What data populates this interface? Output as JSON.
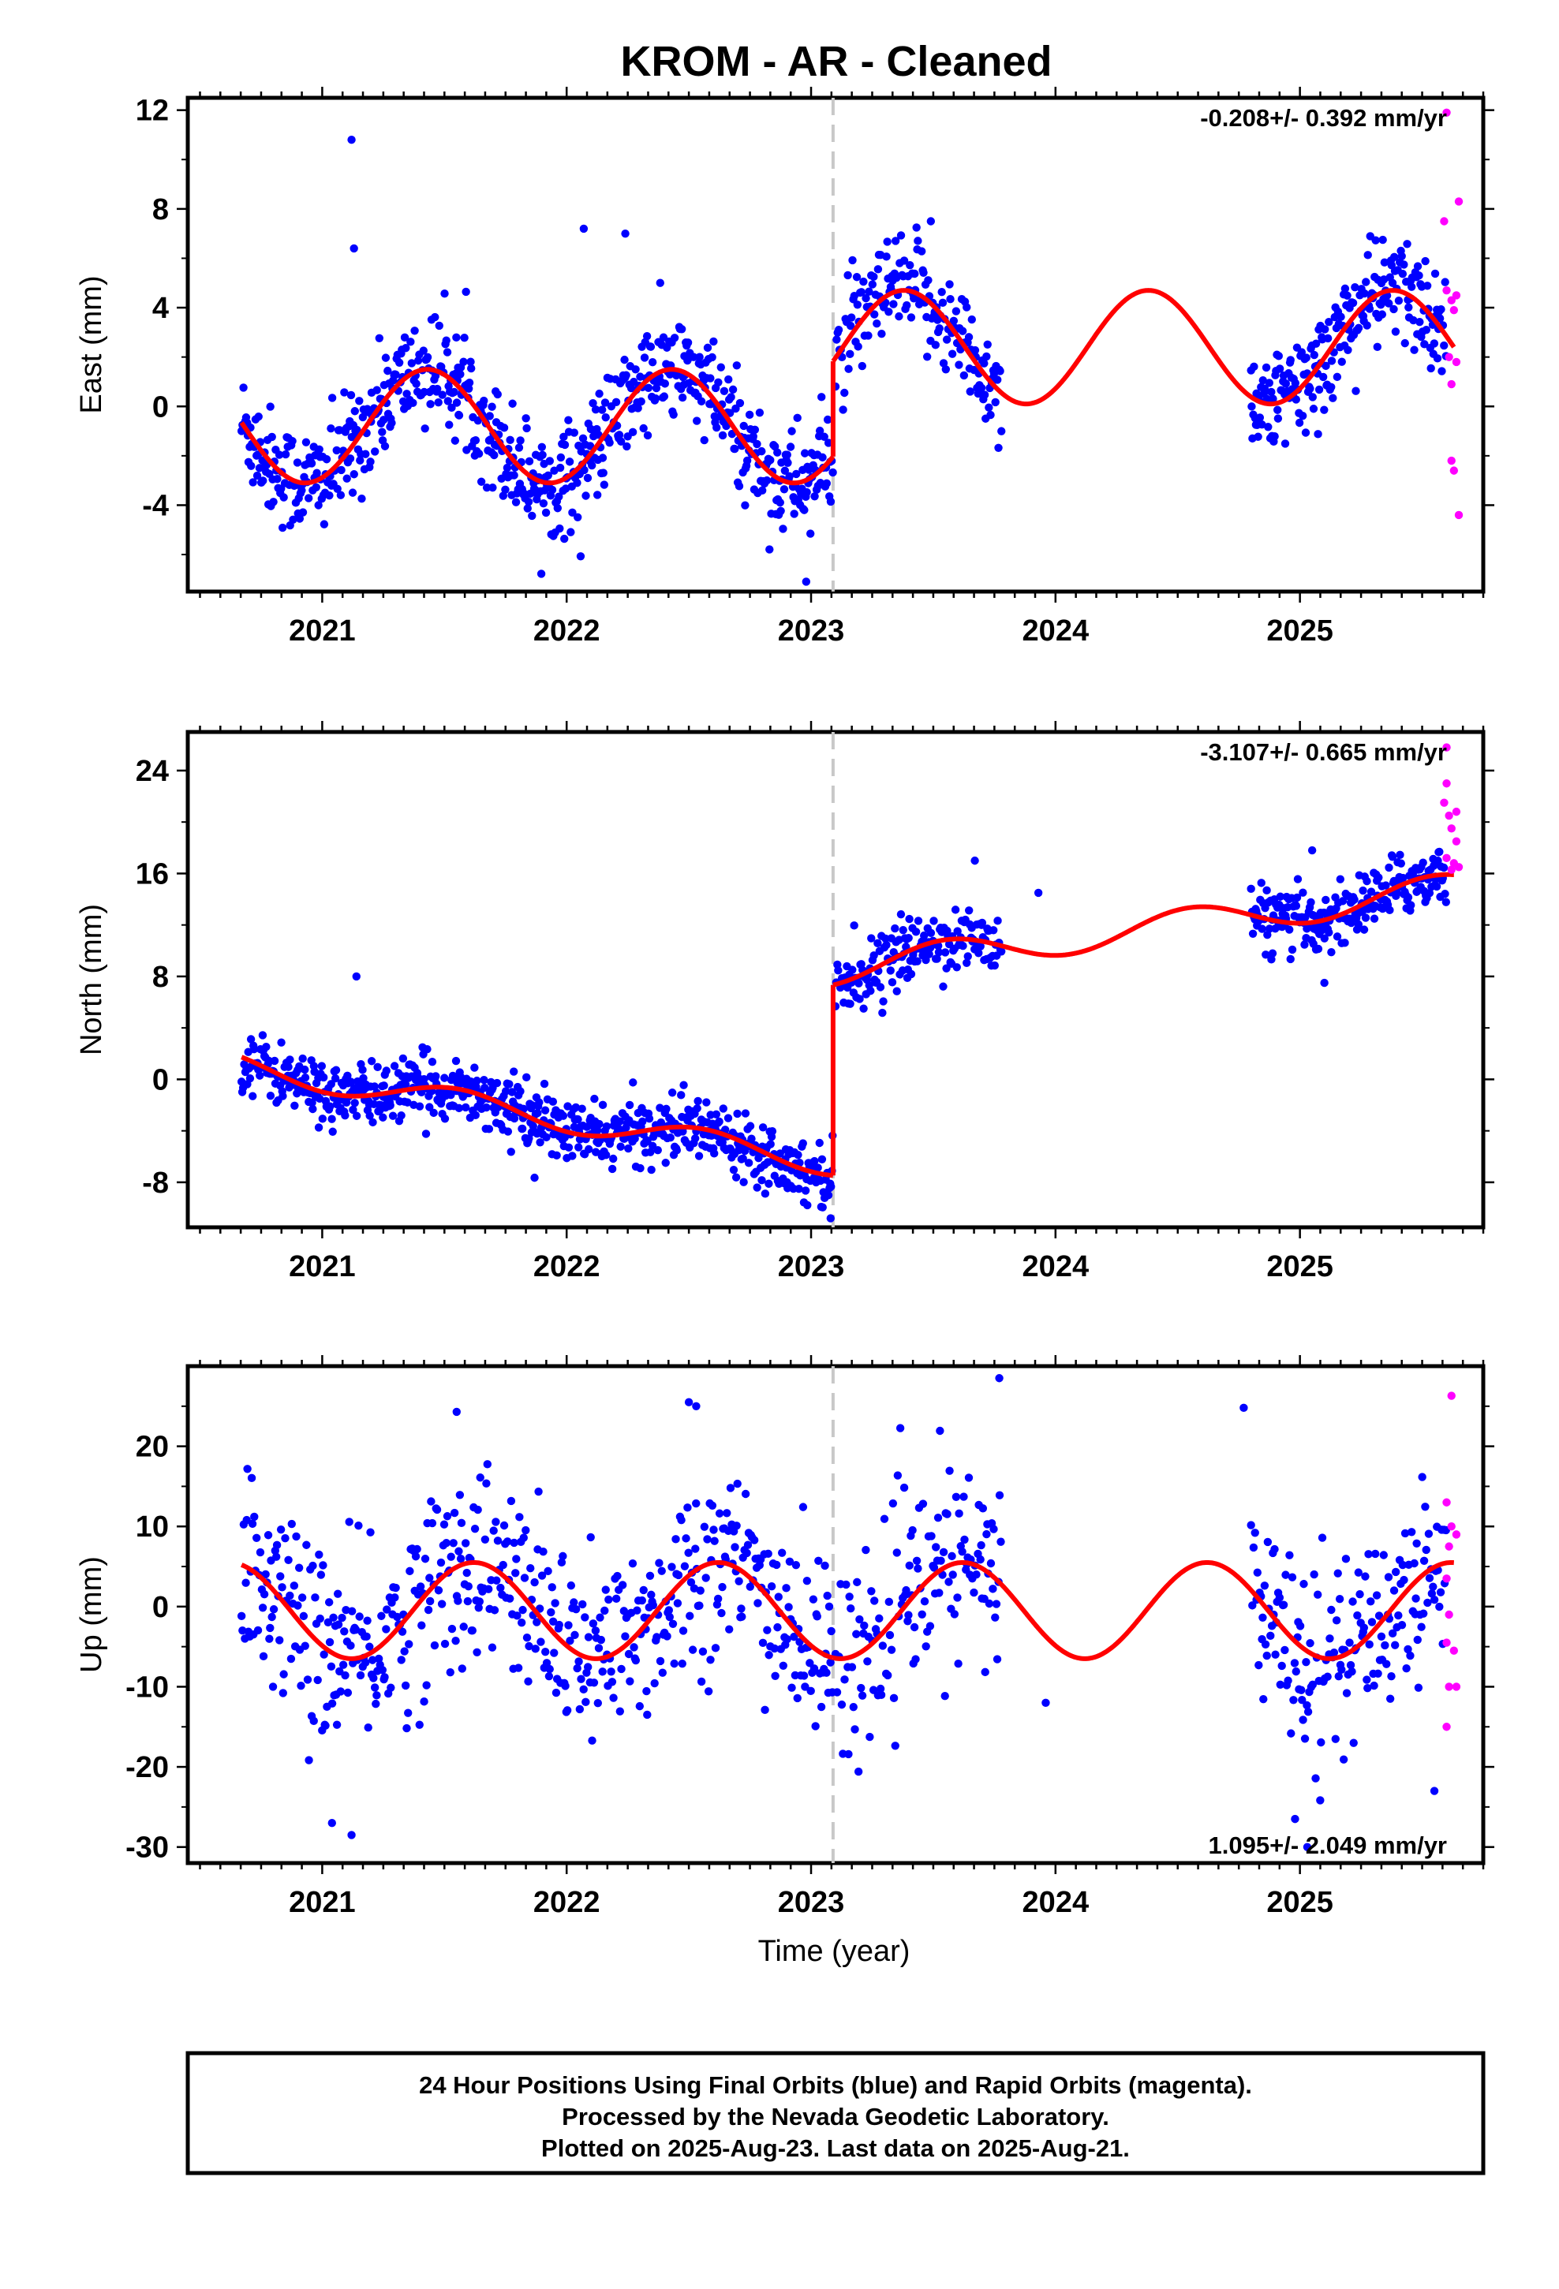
{
  "title": "KROM  - AR - Cleaned",
  "xlabel": "Time (year)",
  "footer": [
    "24 Hour Positions Using Final Orbits (blue) and Rapid Orbits (magenta).",
    "Processed by the Nevada Geodetic Laboratory.",
    "Plotted on 2025-Aug-23. Last data on 2025-Aug-21."
  ],
  "colors": {
    "final": "#0000ff",
    "rapid": "#ff00ff",
    "model": "#ff0000",
    "break": "#c8c8c8"
  },
  "chart_data": [
    {
      "type": "scatter",
      "ylabel": "East (mm)",
      "rate_text": "-0.208+/- 0.392 mm/yr",
      "xlim": [
        2020.45,
        2025.75
      ],
      "ylim": [
        -7.5,
        12.5
      ],
      "xticks": [
        2021,
        2022,
        2023,
        2024,
        2025
      ],
      "xtick_labels": [
        "2021",
        "2022",
        "2023",
        "2024",
        "2025"
      ],
      "yticks": [
        -4,
        0,
        4,
        8,
        12
      ],
      "ytick_labels": [
        "-4",
        "0",
        "4",
        "8",
        "12"
      ],
      "break_epoch": 2023.09,
      "model": {
        "segments": [
          {
            "x0": 2020.67,
            "x1": 2023.09,
            "offset": -0.8,
            "slope": 0.0,
            "amplitude": 2.3,
            "peak": 2021.43
          },
          {
            "x0": 2023.09,
            "x1": 2025.63,
            "offset": 2.4,
            "slope": 0.0,
            "amplitude": 2.3,
            "peak": 2023.38
          }
        ]
      },
      "final_segments": [
        {
          "x0": 2020.67,
          "x1": 2023.09,
          "spacing": 0.0035
        },
        {
          "x0": 2023.1,
          "x1": 2023.78,
          "spacing": 0.004
        },
        {
          "x0": 2024.8,
          "x1": 2025.6,
          "spacing": 0.0035
        }
      ],
      "final_scatter": 1.1,
      "final_points": [
        [
          2021.12,
          10.8
        ],
        [
          2021.13,
          6.4
        ],
        [
          2022.07,
          7.2
        ],
        [
          2022.24,
          7.0
        ],
        [
          2023.49,
          7.5
        ],
        [
          2022.98,
          -7.1
        ]
      ],
      "rapid_points": [
        [
          2025.6,
          11.9
        ],
        [
          2025.59,
          7.5
        ],
        [
          2025.65,
          8.3
        ],
        [
          2025.6,
          4.7
        ],
        [
          2025.62,
          4.3
        ],
        [
          2025.64,
          4.5
        ],
        [
          2025.63,
          3.9
        ],
        [
          2025.61,
          2.0
        ],
        [
          2025.64,
          1.8
        ],
        [
          2025.62,
          0.9
        ],
        [
          2025.62,
          -2.2
        ],
        [
          2025.63,
          -2.6
        ],
        [
          2025.65,
          -4.4
        ]
      ]
    },
    {
      "type": "scatter",
      "ylabel": "North (mm)",
      "rate_text": "-3.107+/- 0.665 mm/yr",
      "xlim": [
        2020.45,
        2025.75
      ],
      "ylim": [
        -11.5,
        27.0
      ],
      "xticks": [
        2021,
        2022,
        2023,
        2024,
        2025
      ],
      "xtick_labels": [
        "2021",
        "2022",
        "2023",
        "2024",
        "2025"
      ],
      "yticks": [
        -8,
        0,
        8,
        16,
        24
      ],
      "ytick_labels": [
        "-8",
        "0",
        "8",
        "16",
        "24"
      ],
      "break_epoch": 2023.09,
      "model": {
        "segments": [
          {
            "x0": 2020.67,
            "x1": 2023.09,
            "offset": 1.0,
            "slope": -3.1,
            "amplitude": 1.0,
            "peak": 2021.55
          },
          {
            "x0": 2023.09,
            "x1": 2025.63,
            "offset": 8.5,
            "slope": 2.5,
            "amplitude": 1.2,
            "peak": 2023.55
          }
        ]
      },
      "final_segments": [
        {
          "x0": 2020.67,
          "x1": 2023.09,
          "spacing": 0.0035
        },
        {
          "x0": 2023.1,
          "x1": 2023.78,
          "spacing": 0.004
        },
        {
          "x0": 2024.8,
          "x1": 2025.6,
          "spacing": 0.0035
        }
      ],
      "final_scatter": 1.2,
      "final_points": [
        [
          2021.14,
          8.0
        ],
        [
          2023.08,
          -10.8
        ],
        [
          2023.67,
          17.0
        ],
        [
          2023.93,
          14.5
        ],
        [
          2025.05,
          17.8
        ],
        [
          2025.1,
          7.5
        ]
      ],
      "rapid_points": [
        [
          2025.6,
          25.8
        ],
        [
          2025.6,
          23.0
        ],
        [
          2025.59,
          21.5
        ],
        [
          2025.61,
          20.5
        ],
        [
          2025.64,
          20.8
        ],
        [
          2025.62,
          19.5
        ],
        [
          2025.64,
          18.5
        ],
        [
          2025.6,
          17.2
        ],
        [
          2025.63,
          16.8
        ],
        [
          2025.62,
          16.3
        ],
        [
          2025.65,
          16.5
        ]
      ]
    },
    {
      "type": "scatter",
      "ylabel": "Up (mm)",
      "rate_text": "1.095+/- 2.049 mm/yr",
      "xlim": [
        2020.45,
        2025.75
      ],
      "ylim": [
        -32,
        30
      ],
      "xticks": [
        2021,
        2022,
        2023,
        2024,
        2025
      ],
      "xtick_labels": [
        "2021",
        "2022",
        "2023",
        "2024",
        "2025"
      ],
      "yticks": [
        -30,
        -20,
        -10,
        0,
        10,
        20
      ],
      "ytick_labels": [
        "-30",
        "-20",
        "-10",
        "0",
        "10",
        "20"
      ],
      "break_epoch": 2023.09,
      "model": {
        "segments": [
          {
            "x0": 2020.67,
            "x1": 2023.09,
            "offset": -0.5,
            "slope": 0.0,
            "amplitude": 6.0,
            "peak": 2021.62
          },
          {
            "x0": 2023.09,
            "x1": 2025.63,
            "offset": -0.5,
            "slope": 0.0,
            "amplitude": 6.0,
            "peak": 2023.62
          }
        ]
      },
      "final_segments": [
        {
          "x0": 2020.67,
          "x1": 2023.09,
          "spacing": 0.0045
        },
        {
          "x0": 2023.1,
          "x1": 2023.78,
          "spacing": 0.005
        },
        {
          "x0": 2024.8,
          "x1": 2025.6,
          "spacing": 0.0045
        }
      ],
      "final_scatter": 6.0,
      "final_points": [
        [
          2021.04,
          -27.0
        ],
        [
          2021.12,
          -28.5
        ],
        [
          2021.55,
          24.3
        ],
        [
          2022.5,
          25.5
        ],
        [
          2022.53,
          25.0
        ],
        [
          2023.77,
          28.5
        ],
        [
          2024.77,
          24.8
        ],
        [
          2024.98,
          -26.5
        ],
        [
          2025.03,
          -30.0
        ],
        [
          2025.55,
          -23.0
        ],
        [
          2023.96,
          -12.0
        ]
      ],
      "rapid_points": [
        [
          2025.62,
          26.3
        ],
        [
          2025.6,
          13.0
        ],
        [
          2025.62,
          10.0
        ],
        [
          2025.61,
          7.5
        ],
        [
          2025.6,
          3.5
        ],
        [
          2025.61,
          -1.0
        ],
        [
          2025.6,
          -4.5
        ],
        [
          2025.63,
          -5.5
        ],
        [
          2025.61,
          -10.0
        ],
        [
          2025.64,
          -10.0
        ],
        [
          2025.6,
          -15.0
        ],
        [
          2025.64,
          9.0
        ]
      ]
    }
  ]
}
